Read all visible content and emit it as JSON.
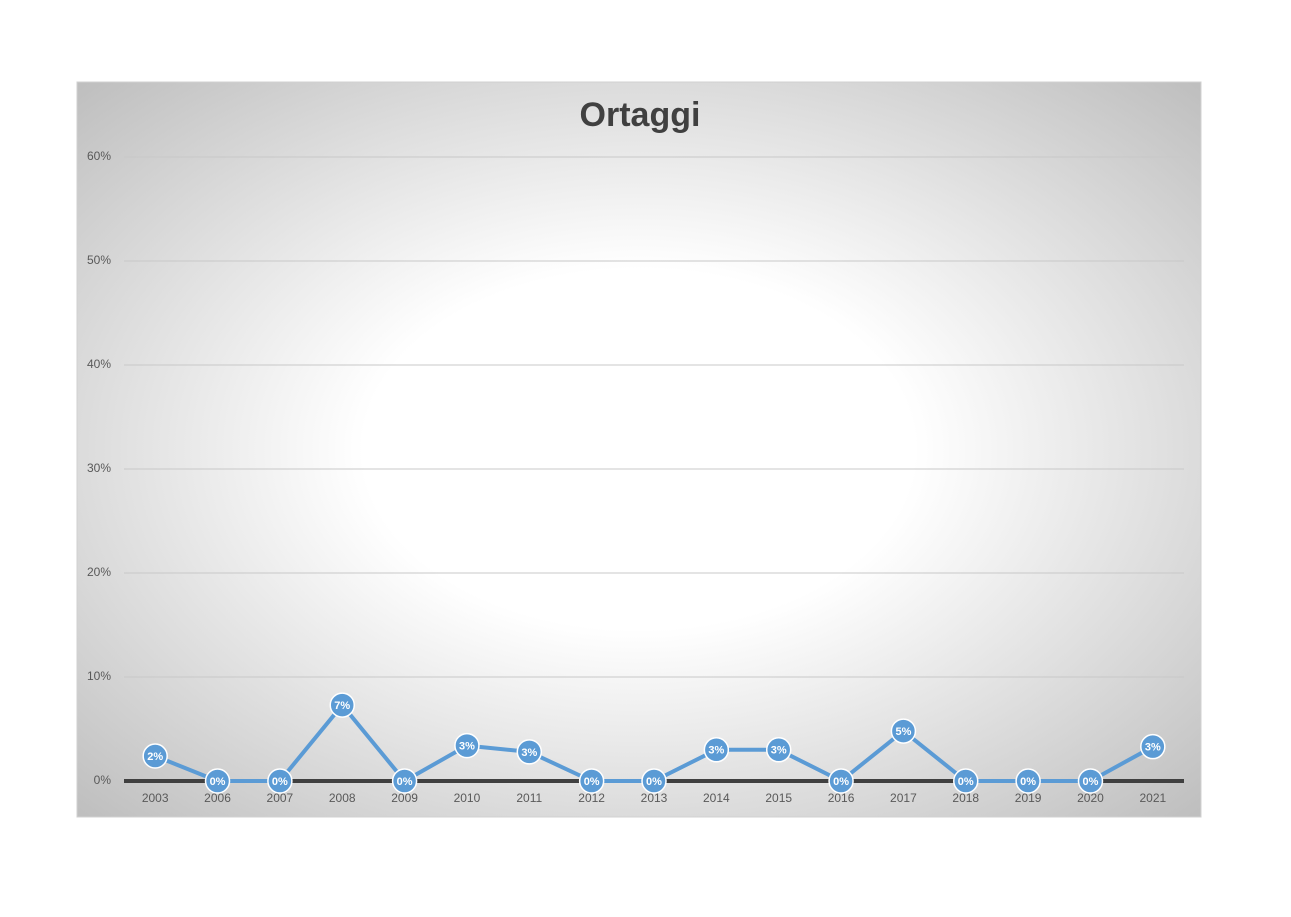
{
  "chart_data": {
    "type": "line",
    "title": "Ortaggi",
    "categories": [
      "2003",
      "2006",
      "2007",
      "2008",
      "2009",
      "2010",
      "2011",
      "2012",
      "2013",
      "2014",
      "2015",
      "2016",
      "2017",
      "2018",
      "2019",
      "2020",
      "2021"
    ],
    "series": [
      {
        "name": "Ortaggi",
        "color": "#5b9bd5",
        "values": [
          2.4,
          0,
          0,
          7.3,
          0,
          3.4,
          2.8,
          0,
          0,
          3.0,
          3.0,
          0,
          4.8,
          0,
          0,
          0,
          3.3
        ],
        "value_labels": [
          "2%",
          "0%",
          "0%",
          "7%",
          "0%",
          "3%",
          "3%",
          "0%",
          "0%",
          "3%",
          "3%",
          "0%",
          "5%",
          "0%",
          "0%",
          "0%",
          "3%"
        ]
      }
    ],
    "ylim": [
      0,
      60
    ],
    "yticks": [
      {
        "value": 0,
        "label": "0%"
      },
      {
        "value": 10,
        "label": "10%"
      },
      {
        "value": 20,
        "label": "20%"
      },
      {
        "value": 30,
        "label": "30%"
      },
      {
        "value": 40,
        "label": "40%"
      },
      {
        "value": 50,
        "label": "50%"
      },
      {
        "value": 60,
        "label": "60%"
      }
    ],
    "grid": true
  }
}
